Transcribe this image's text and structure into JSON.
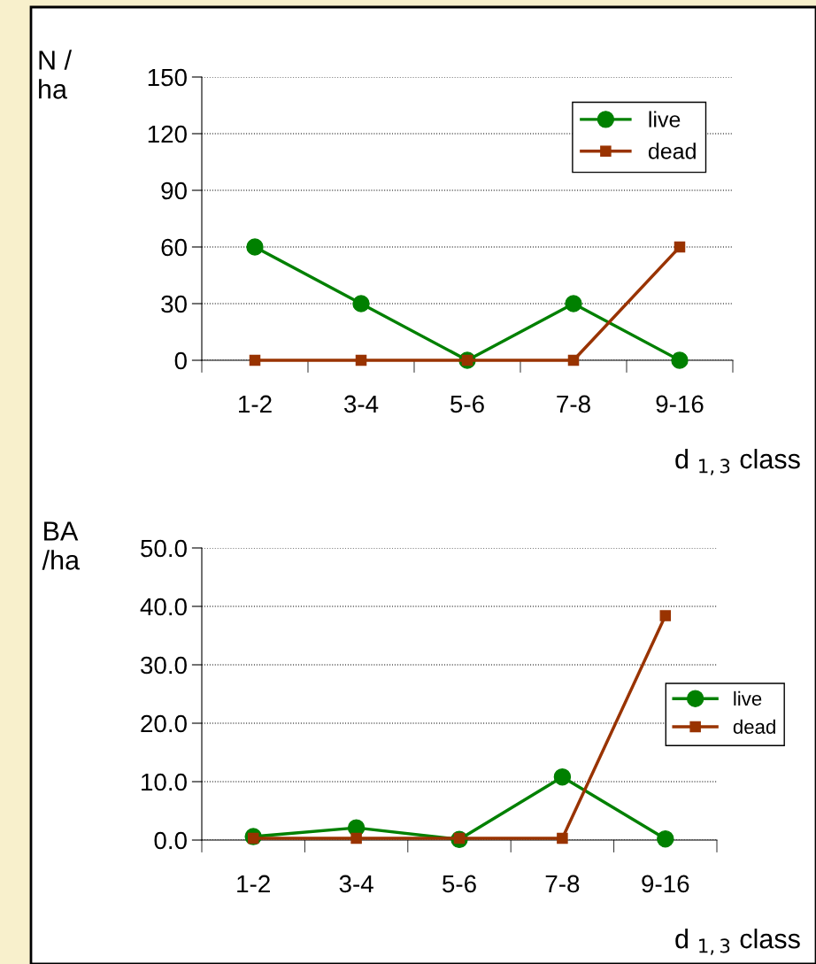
{
  "chart_data": [
    {
      "type": "line",
      "ylabel": "N /\nha",
      "xlabel": "d $_{1,3}$ class",
      "categories": [
        "1-2",
        "3-4",
        "5-6",
        "7-8",
        "9-16"
      ],
      "ylim": [
        0,
        150
      ],
      "yticks": [
        0,
        30,
        60,
        90,
        120,
        150
      ],
      "grid": "y",
      "legend": "top right",
      "series": [
        {
          "name": "live",
          "color": "#008000",
          "marker": "circle",
          "values": [
            60,
            30,
            0,
            30,
            0
          ]
        },
        {
          "name": "dead",
          "color": "#993300",
          "marker": "square",
          "values": [
            0,
            0,
            0,
            0,
            60
          ]
        }
      ]
    },
    {
      "type": "line",
      "ylabel": "BA\n/ha",
      "xlabel": "d $_{1,3}$ class",
      "categories": [
        "1-2",
        "3-4",
        "5-6",
        "7-8",
        "9-16"
      ],
      "ylim": [
        0,
        50
      ],
      "yticks": [
        {
          "value": 0,
          "label": "0.0"
        },
        {
          "value": 10,
          "label": "10.0"
        },
        {
          "value": 20,
          "label": "20.0"
        },
        {
          "value": 30,
          "label": "30.0"
        },
        {
          "value": 40,
          "label": "40.0"
        },
        {
          "value": 50,
          "label": "50.0"
        }
      ],
      "grid": "y",
      "legend": "right",
      "series": [
        {
          "name": "live",
          "color": "#008000",
          "marker": "circle",
          "values": [
            0.6,
            2.1,
            0.1,
            10.8,
            0.2
          ]
        },
        {
          "name": "dead",
          "color": "#993300",
          "marker": "square",
          "values": [
            0.3,
            0.3,
            0.3,
            0.3,
            38.4
          ]
        }
      ]
    }
  ]
}
